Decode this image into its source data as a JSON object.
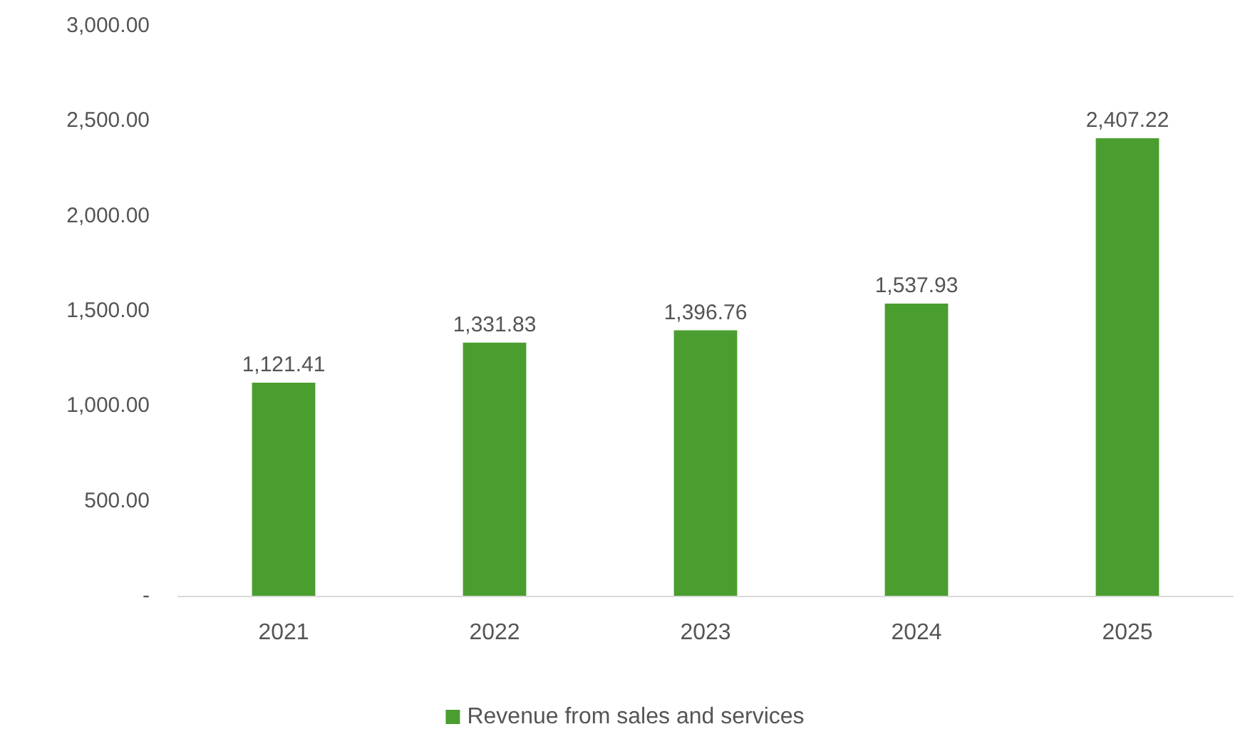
{
  "chart_data": {
    "type": "bar",
    "categories": [
      "2021",
      "2022",
      "2023",
      "2024",
      "2025"
    ],
    "series": [
      {
        "name": "Revenue from sales and services",
        "color": "#4a9e2f",
        "values": [
          1121.41,
          1331.83,
          1396.76,
          1537.93,
          2407.22
        ],
        "value_labels": [
          "1,121.41",
          "1,331.83",
          "1,396.76",
          "1,537.93",
          "2,407.22"
        ]
      }
    ],
    "ylim": [
      0,
      3000
    ],
    "yticks": [
      {
        "value": 0,
        "label": "-"
      },
      {
        "value": 500,
        "label": "500.00"
      },
      {
        "value": 1000,
        "label": "1,000.00"
      },
      {
        "value": 1500,
        "label": "1,500.00"
      },
      {
        "value": 2000,
        "label": "2,000.00"
      },
      {
        "value": 2500,
        "label": "2,500.00"
      },
      {
        "value": 3000,
        "label": "3,000.00"
      }
    ],
    "grid": false,
    "legend": "bottom"
  }
}
